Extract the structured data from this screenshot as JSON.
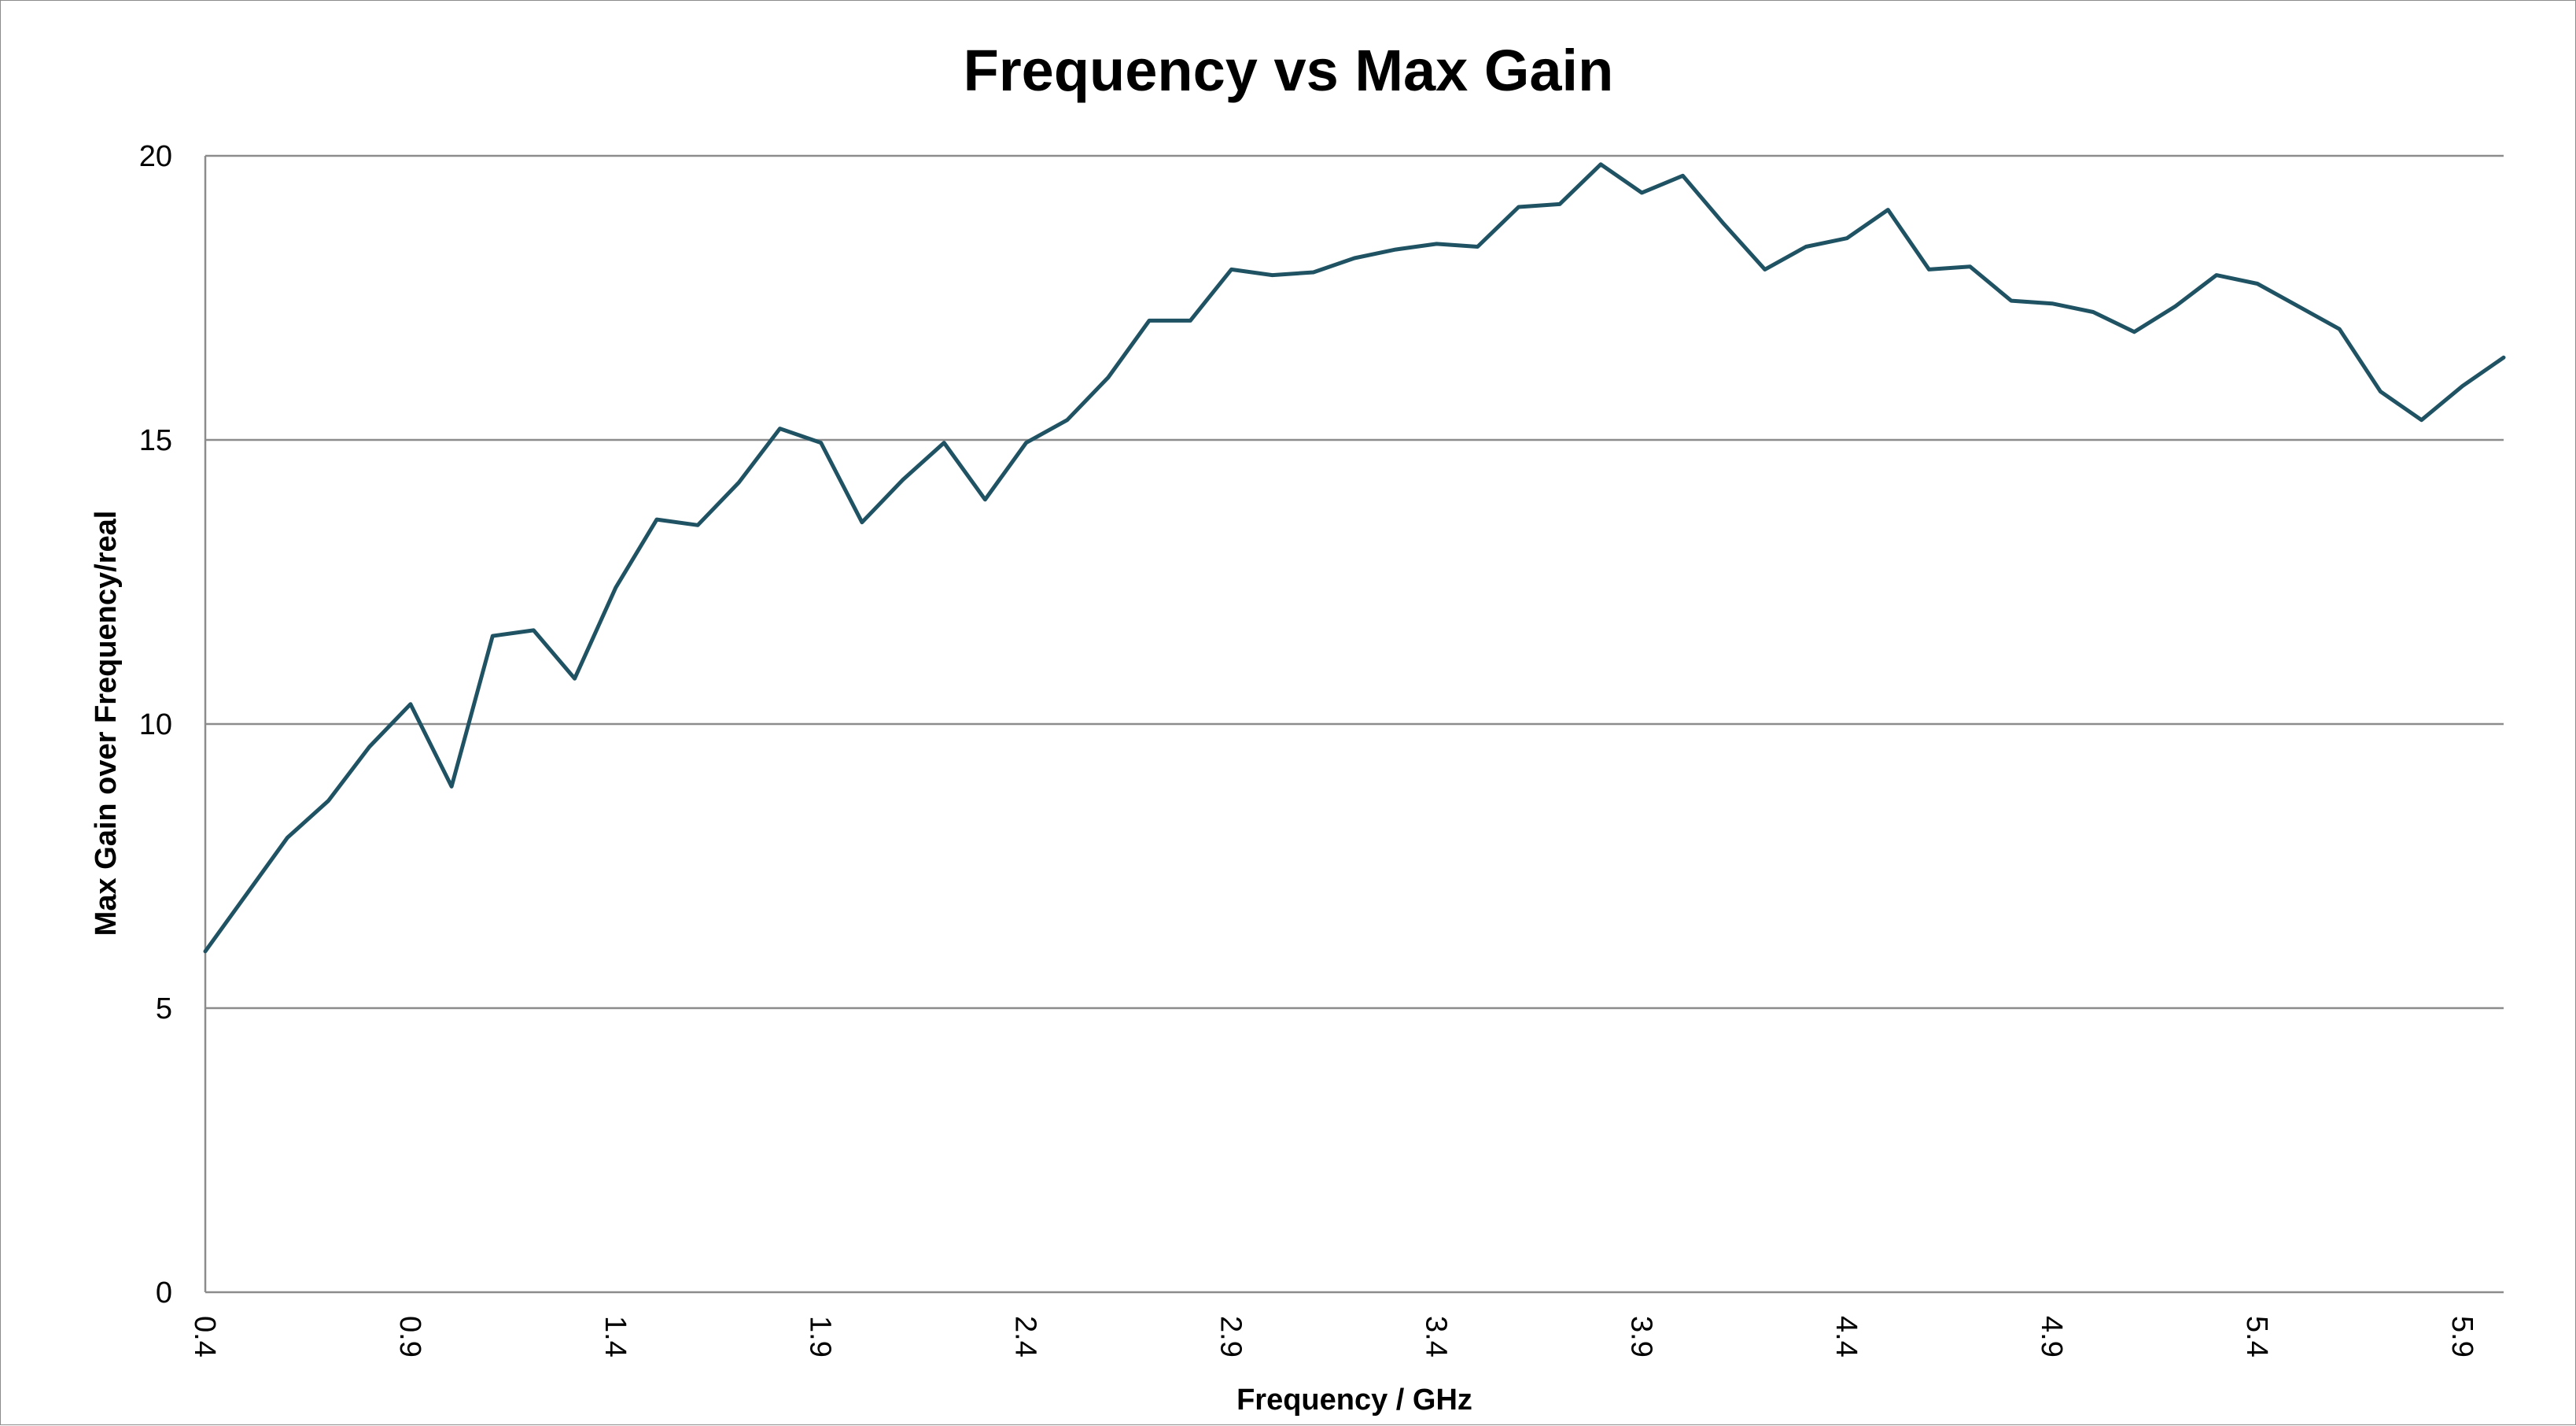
{
  "chart_data": {
    "type": "line",
    "title": "Frequency vs Max Gain",
    "xlabel": "Frequency / GHz",
    "ylabel": "Max Gain over Frequency/real",
    "xlim": [
      0.4,
      6.0
    ],
    "ylim": [
      0,
      20
    ],
    "x_ticks": [
      "0.4",
      "0.9",
      "1.4",
      "1.9",
      "2.4",
      "2.9",
      "3.4",
      "3.9",
      "4.4",
      "4.9",
      "5.4",
      "5.9"
    ],
    "y_ticks": [
      "0",
      "5",
      "10",
      "15",
      "20"
    ],
    "grid": "horizontal",
    "legend": "none",
    "line_color": "#1f5263",
    "series": [
      {
        "x": [
          0.4,
          0.5,
          0.6,
          0.7,
          0.8,
          0.9,
          1.0,
          1.1,
          1.2,
          1.3,
          1.4,
          1.5,
          1.6,
          1.7,
          1.8,
          1.9,
          2.0,
          2.1,
          2.2,
          2.3,
          2.4,
          2.5,
          2.6,
          2.7,
          2.8,
          2.9,
          3.0,
          3.1,
          3.2,
          3.3,
          3.4,
          3.5,
          3.6,
          3.7,
          3.8,
          3.9,
          4.0,
          4.1,
          4.2,
          4.3,
          4.4,
          4.5,
          4.6,
          4.7,
          4.8,
          4.9,
          5.0,
          5.1,
          5.2,
          5.3,
          5.4,
          5.5,
          5.6,
          5.7,
          5.8,
          5.9,
          6.0
        ],
        "values": [
          6.0,
          7.0,
          8.0,
          8.65,
          9.6,
          10.35,
          8.9,
          11.55,
          11.65,
          10.8,
          12.4,
          13.6,
          13.5,
          14.25,
          15.2,
          14.95,
          13.55,
          14.3,
          14.95,
          13.95,
          14.95,
          15.35,
          16.1,
          17.1,
          17.1,
          18.0,
          17.9,
          17.95,
          18.2,
          18.35,
          18.45,
          18.4,
          19.1,
          19.15,
          19.85,
          19.35,
          19.65,
          18.8,
          18.0,
          18.4,
          18.55,
          19.05,
          18.0,
          18.05,
          17.45,
          17.4,
          17.25,
          16.9,
          17.35,
          17.9,
          17.75,
          17.35,
          16.95,
          15.85,
          15.35,
          15.95,
          16.45
        ]
      }
    ]
  }
}
